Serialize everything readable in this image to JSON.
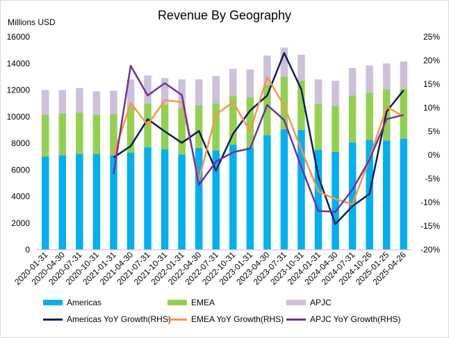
{
  "chart_data": {
    "type": "bar",
    "title": "Revenue By Geography",
    "ylabel": "Millions USD",
    "categories": [
      "2020-01-31",
      "2020-04-30",
      "2020-07-31",
      "2020-10-31",
      "2021-01-31",
      "2021-04-30",
      "2021-07-31",
      "2021-10-31",
      "2022-01-31",
      "2022-04-30",
      "2022-07-31",
      "2022-10-31",
      "2023-01-31",
      "2023-04-30",
      "2023-07-31",
      "2023-10-31",
      "2024-01-31",
      "2024-04-30",
      "2024-07-31",
      "2024-10-26",
      "2025-01-25",
      "2025-04-26"
    ],
    "ylim": [
      0,
      16000
    ],
    "yticks": [
      "0",
      "2000",
      "4000",
      "6000",
      "8000",
      "10000",
      "12000",
      "14000",
      "16000"
    ],
    "y2lim": [
      -20,
      25
    ],
    "y2ticks": [
      "-20%",
      "-15%",
      "-10%",
      "-5%",
      "0%",
      "5%",
      "10%",
      "15%",
      "20%",
      "25%"
    ],
    "stacked": true,
    "series": [
      {
        "name": "Americas",
        "kind": "bar",
        "color": "#00b0f0",
        "values": [
          7000,
          7100,
          7200,
          7200,
          7100,
          7300,
          7700,
          7550,
          7150,
          7650,
          7450,
          7900,
          7700,
          8600,
          9050,
          9000,
          7500,
          7350,
          8050,
          8250,
          8200,
          8350
        ]
      },
      {
        "name": "EMEA",
        "kind": "bar",
        "color": "#92d050",
        "values": [
          3150,
          3150,
          3100,
          2950,
          3100,
          3450,
          3300,
          3350,
          3550,
          3200,
          3550,
          3650,
          3750,
          3800,
          3950,
          3700,
          3450,
          3450,
          3550,
          3550,
          3850,
          3750
        ]
      },
      {
        "name": "APJC",
        "kind": "bar",
        "color": "#ccc0da",
        "values": [
          1850,
          1750,
          1850,
          1750,
          1750,
          2050,
          2100,
          2000,
          2100,
          1950,
          2050,
          2050,
          2100,
          2200,
          2200,
          1950,
          1850,
          1900,
          2050,
          2050,
          1950,
          2050
        ]
      },
      {
        "name": "Americas YoY Growth(RHS)",
        "kind": "line",
        "axis": "right",
        "color": "#0d1f4d",
        "values": [
          null,
          null,
          null,
          null,
          -0.5,
          1.9,
          7.6,
          5.0,
          2.6,
          5.1,
          -3.3,
          4.5,
          9.4,
          12.6,
          21.6,
          13.9,
          -4.5,
          -14.6,
          -10.8,
          -8.2,
          9.2,
          13.7
        ]
      },
      {
        "name": "EMEA YoY Growth(RHS)",
        "kind": "line",
        "axis": "right",
        "color": "#f79646",
        "values": [
          null,
          null,
          null,
          null,
          0.0,
          11.0,
          6.4,
          11.6,
          11.2,
          -5.3,
          8.6,
          11.2,
          5.0,
          16.5,
          10.4,
          1.2,
          -7.7,
          -9.3,
          -10.4,
          -0.8,
          10.2,
          8.2
        ]
      },
      {
        "name": "APJC YoY Growth(RHS)",
        "kind": "line",
        "axis": "right",
        "color": "#7030a0",
        "values": [
          null,
          null,
          null,
          null,
          -4.0,
          18.9,
          12.6,
          15.2,
          12.7,
          -6.3,
          -1.4,
          0.6,
          1.4,
          10.6,
          7.4,
          -2.5,
          -11.8,
          -12.0,
          -7.3,
          -1.0,
          7.6,
          8.5
        ]
      }
    ],
    "legend_position": "bottom"
  }
}
